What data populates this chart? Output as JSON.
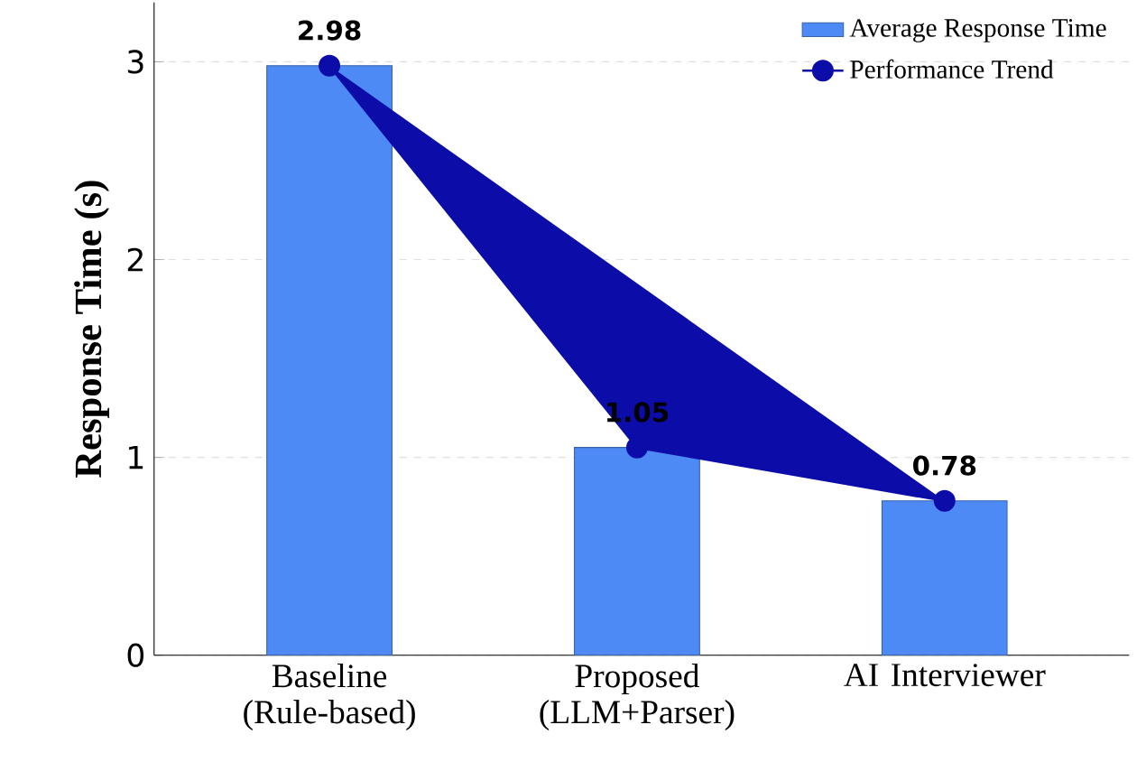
{
  "chart_data": {
    "type": "bar",
    "ylabel": "Response Time (s)",
    "categories": [
      "Baseline (Rule-based)",
      "Proposed (LLM+Parser)",
      "AI Interviewer"
    ],
    "series": [
      {
        "name": "Average Response Time",
        "color": "#4d8af5",
        "values": [
          2.98,
          1.05,
          0.78
        ],
        "value_labels": [
          "2.98",
          "1.05",
          "0.78"
        ]
      },
      {
        "type": "line",
        "name": "Performance Trend",
        "color": "#0c0ca8",
        "values": [
          2.98,
          1.05,
          0.78
        ],
        "marker": "circle"
      }
    ],
    "ylim": [
      0,
      3.3
    ],
    "yticks": [
      0,
      1,
      2,
      3
    ],
    "grid": "y",
    "legend": "top right"
  }
}
